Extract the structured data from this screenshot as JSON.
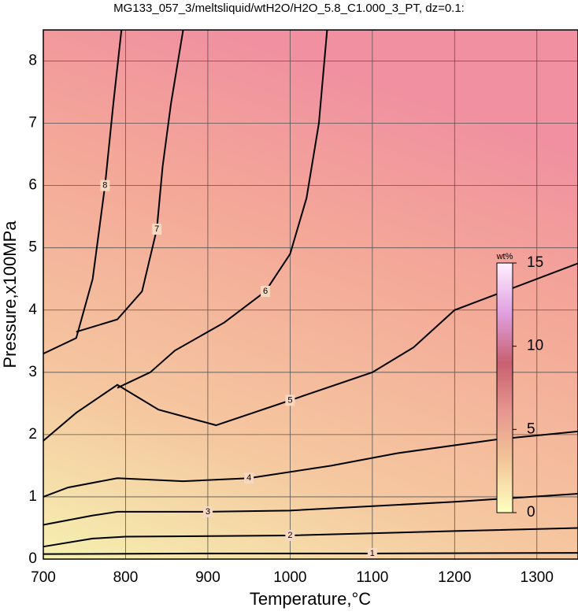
{
  "chart_data": {
    "type": "contour",
    "title": "MG133_057_3/meltsliquid/wtH2O/H2O_5.8_C1.000_3_PT, dz=0.1:",
    "x_label": "Temperature,°C",
    "y_label": "Pressure,x100MPa",
    "xlim": [
      700,
      1350
    ],
    "xticks": [
      700,
      800,
      900,
      1000,
      1100,
      1200,
      1300
    ],
    "ylim": [
      0,
      8.5
    ],
    "yticks": [
      0,
      1,
      2,
      3,
      4,
      5,
      6,
      7,
      8
    ],
    "grid": true,
    "line_color": "#000000",
    "contours": [
      {
        "level": 1,
        "x": [
          700,
          900,
          1100,
          1350
        ],
        "y": [
          0.08,
          0.09,
          0.09,
          0.1
        ]
      },
      {
        "level": 2,
        "x": [
          700,
          760,
          800,
          1000,
          1200,
          1350
        ],
        "y": [
          0.2,
          0.33,
          0.36,
          0.38,
          0.45,
          0.5
        ]
      },
      {
        "level": 3,
        "x": [
          700,
          760,
          790,
          900,
          1000,
          1200,
          1350
        ],
        "y": [
          0.55,
          0.7,
          0.76,
          0.76,
          0.78,
          0.92,
          1.05
        ]
      },
      {
        "level": 4,
        "x": [
          700,
          730,
          790,
          870,
          950,
          1050,
          1130,
          1250,
          1350
        ],
        "y": [
          1.0,
          1.15,
          1.3,
          1.25,
          1.3,
          1.5,
          1.7,
          1.92,
          2.05
        ]
      },
      {
        "level": 5,
        "x": [
          700,
          740,
          790,
          840,
          910,
          1000,
          1100,
          1150,
          1200,
          1350
        ],
        "y": [
          1.9,
          2.35,
          2.8,
          2.4,
          2.15,
          2.55,
          3.0,
          3.4,
          4.0,
          4.75
        ]
      },
      {
        "level": 6,
        "x": [
          790,
          830,
          860,
          920,
          970,
          1000,
          1020,
          1035,
          1045
        ],
        "y": [
          2.75,
          3.0,
          3.35,
          3.8,
          4.3,
          4.9,
          5.8,
          7.0,
          8.5
        ]
      },
      {
        "level": 7,
        "x": [
          740,
          790,
          820,
          838,
          845,
          855,
          870
        ],
        "y": [
          3.65,
          3.85,
          4.3,
          5.3,
          6.3,
          7.3,
          8.5
        ]
      },
      {
        "level": 8,
        "x": [
          700,
          740,
          760,
          775,
          785,
          795
        ],
        "y": [
          3.3,
          3.55,
          4.5,
          6.0,
          7.3,
          8.5
        ]
      }
    ],
    "colorbar": {
      "label": "wt%",
      "lim": [
        0,
        15
      ],
      "ticks": [
        0,
        5,
        10,
        15
      ],
      "colors": [
        "#ffffc0",
        "#f3c898",
        "#e89890",
        "#c86070",
        "#e0a0e0",
        "#fff0ff"
      ]
    }
  }
}
